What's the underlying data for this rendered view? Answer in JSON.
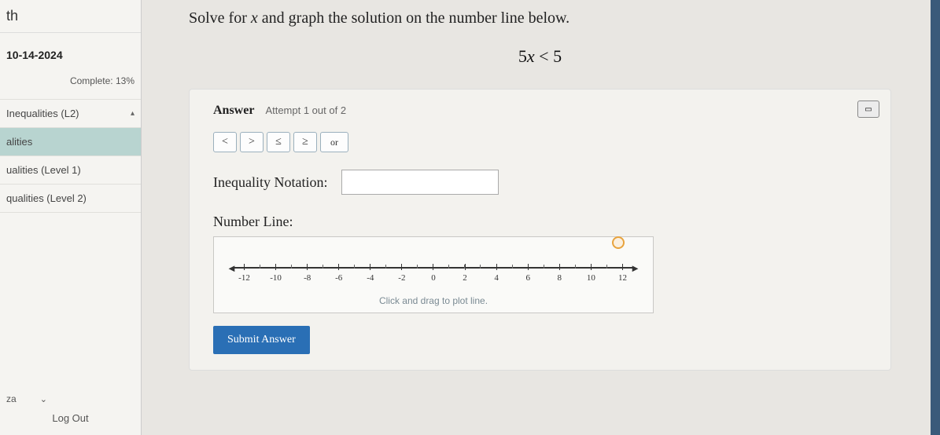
{
  "sidebar": {
    "title_fragment": "th",
    "date": "10-14-2024",
    "complete_label": "Complete: 13%",
    "items": [
      {
        "label": "Inequalities (L2)",
        "active": false,
        "has_arrow": true
      },
      {
        "label": "alities",
        "active": true,
        "has_arrow": false
      },
      {
        "label": "ualities (Level 1)",
        "active": false,
        "has_arrow": false
      },
      {
        "label": "qualities (Level 2)",
        "active": false,
        "has_arrow": false
      }
    ],
    "user": "za",
    "logout": "Log Out"
  },
  "problem": {
    "prompt_prefix": "Solve for ",
    "prompt_var": "x",
    "prompt_suffix": " and graph the solution on the number line below.",
    "equation": "5x < 5"
  },
  "answer": {
    "heading": "Answer",
    "attempt": "Attempt 1 out of 2",
    "op_buttons": [
      "<",
      ">",
      "≤",
      "≥",
      "or"
    ],
    "notation_label": "Inequality Notation:",
    "notation_value": "",
    "numberline_label": "Number Line:",
    "hint": "Click and drag to plot line.",
    "submit": "Submit Answer"
  },
  "numberline": {
    "ticks": [
      "-12",
      "-10",
      "-8",
      "-6",
      "-4",
      "-2",
      "0",
      "2",
      "4",
      "6",
      "8",
      "10",
      "12"
    ],
    "min": -12,
    "max": 12,
    "line_color": "#333333",
    "background": "#fafaf8",
    "marker_color": "#e8a33d"
  },
  "colors": {
    "panel_bg": "#f3f2ee",
    "button_border": "#9bb0bd",
    "submit_bg": "#2a6fb5",
    "active_nav": "#b8d4d0"
  }
}
